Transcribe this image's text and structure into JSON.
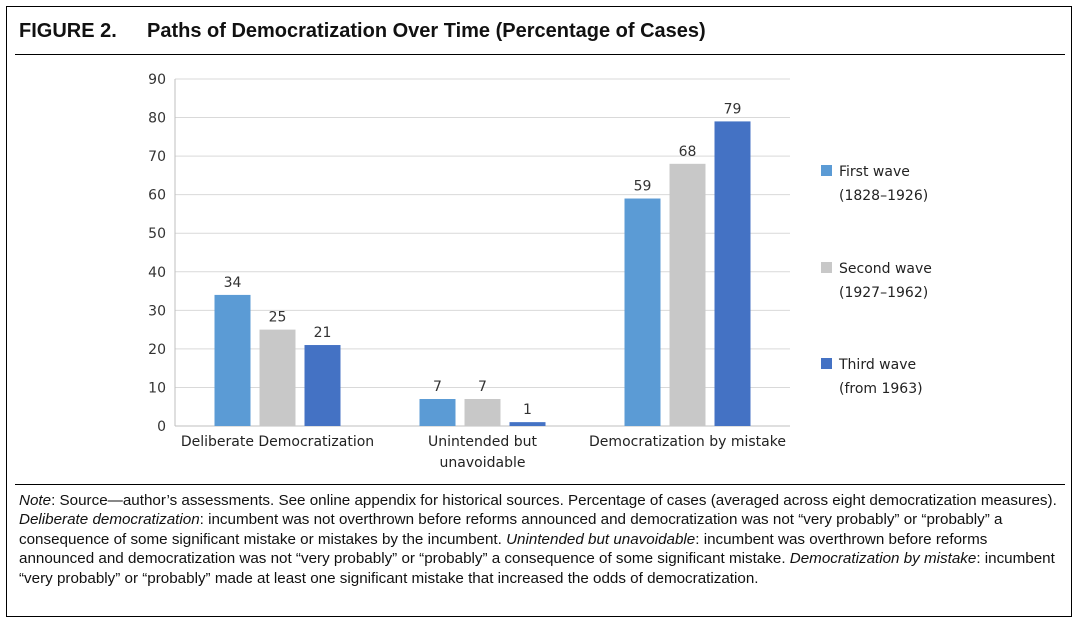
{
  "figure": {
    "label": "FIGURE 2.",
    "title": "Paths of Democratization Over Time (Percentage of Cases)"
  },
  "chart_data": {
    "type": "bar",
    "title": "",
    "xlabel": "",
    "ylabel": "",
    "categories": [
      "Deliberate Democratization",
      "Unintended but unavoidable",
      "Democratization by mistake"
    ],
    "category_lines": [
      [
        "Deliberate Democratization"
      ],
      [
        "Unintended but",
        "unavoidable"
      ],
      [
        "Democratization by mistake"
      ]
    ],
    "series": [
      {
        "name_lines": [
          "First wave",
          "(1828–1926)"
        ],
        "color": "#5b9bd5",
        "values": [
          34,
          7,
          59
        ]
      },
      {
        "name_lines": [
          "Second wave",
          "(1927–1962)"
        ],
        "color": "#c8c8c8",
        "values": [
          25,
          7,
          68
        ]
      },
      {
        "name_lines": [
          "Third wave",
          "(from 1963)"
        ],
        "color": "#4472c4",
        "values": [
          21,
          1,
          79
        ]
      }
    ],
    "ylim": [
      0,
      90
    ],
    "yticks": [
      0,
      10,
      20,
      30,
      40,
      50,
      60,
      70,
      80,
      90
    ],
    "grid": true,
    "legend": "right",
    "data_labels": true
  },
  "note": {
    "parts": [
      {
        "text": "Note",
        "italic": true
      },
      {
        "text": ": Source—author’s assessments. See online appendix for historical sources. Percentage of cases (averaged across eight democratization measures). ",
        "italic": false
      },
      {
        "text": "Deliberate democratization",
        "italic": true
      },
      {
        "text": ": incumbent was not overthrown before reforms announced and democratization was not “very probably” or “probably” a consequence of some significant mistake or mistakes by the incumbent. ",
        "italic": false
      },
      {
        "text": "Unintended but unavoidable",
        "italic": true
      },
      {
        "text": ": incumbent was overthrown before reforms announced and democratization was not “very probably” or “probably” a consequence of some significant mistake. ",
        "italic": false
      },
      {
        "text": "Democratization by mistake",
        "italic": true
      },
      {
        "text": ": incumbent “very probably” or “probably” made at least one significant mistake that increased the odds of democratization.",
        "italic": false
      }
    ]
  }
}
